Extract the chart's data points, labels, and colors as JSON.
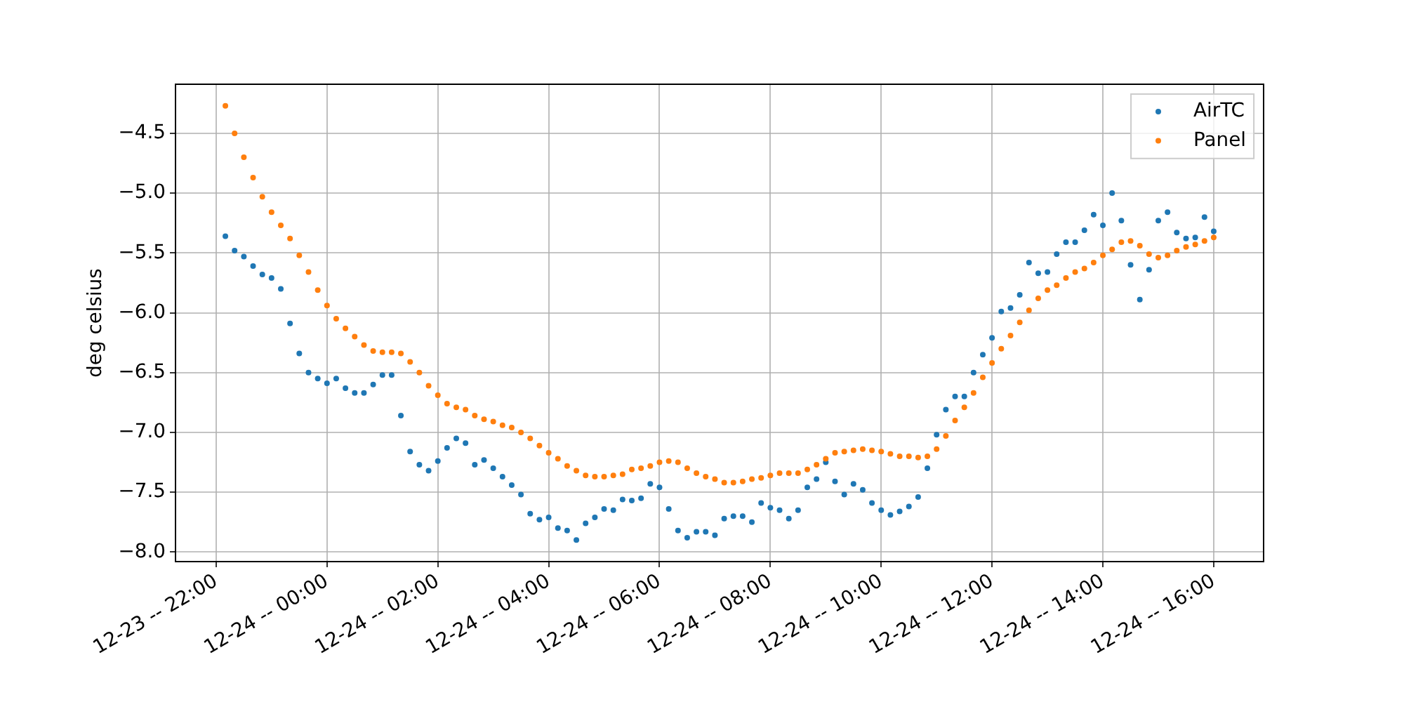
{
  "chart_data": {
    "type": "scatter",
    "x": [
      "--12-23T22:10",
      "--12-23T22:20",
      "--12-23T22:30",
      "--12-23T22:40",
      "--12-23T22:50",
      "--12-23T23:00",
      "--12-23T23:10",
      "--12-23T23:20",
      "--12-23T23:30",
      "--12-23T23:40",
      "--12-23T23:50",
      "--12-24T00:00",
      "--12-24T00:10",
      "--12-24T00:20",
      "--12-24T00:30",
      "--12-24T00:40",
      "--12-24T00:50",
      "--12-24T01:00",
      "--12-24T01:10",
      "--12-24T01:20",
      "--12-24T01:30",
      "--12-24T01:40",
      "--12-24T01:50",
      "--12-24T02:00",
      "--12-24T02:10",
      "--12-24T02:20",
      "--12-24T02:30",
      "--12-24T02:40",
      "--12-24T02:50",
      "--12-24T03:00",
      "--12-24T03:10",
      "--12-24T03:20",
      "--12-24T03:30",
      "--12-24T03:40",
      "--12-24T03:50",
      "--12-24T04:00",
      "--12-24T04:10",
      "--12-24T04:20",
      "--12-24T04:30",
      "--12-24T04:40",
      "--12-24T04:50",
      "--12-24T05:00",
      "--12-24T05:10",
      "--12-24T05:20",
      "--12-24T05:30",
      "--12-24T05:40",
      "--12-24T05:50",
      "--12-24T06:00",
      "--12-24T06:10",
      "--12-24T06:20",
      "--12-24T06:30",
      "--12-24T06:40",
      "--12-24T06:50",
      "--12-24T07:00",
      "--12-24T07:10",
      "--12-24T07:20",
      "--12-24T07:30",
      "--12-24T07:40",
      "--12-24T07:50",
      "--12-24T08:00",
      "--12-24T08:10",
      "--12-24T08:20",
      "--12-24T08:30",
      "--12-24T08:40",
      "--12-24T08:50",
      "--12-24T09:00",
      "--12-24T09:10",
      "--12-24T09:20",
      "--12-24T09:30",
      "--12-24T09:40",
      "--12-24T09:50",
      "--12-24T10:00",
      "--12-24T10:10",
      "--12-24T10:20",
      "--12-24T10:30",
      "--12-24T10:40",
      "--12-24T10:50",
      "--12-24T11:00",
      "--12-24T11:10",
      "--12-24T11:20",
      "--12-24T11:30",
      "--12-24T11:40",
      "--12-24T11:50",
      "--12-24T12:00",
      "--12-24T12:10",
      "--12-24T12:20",
      "--12-24T12:30",
      "--12-24T12:40",
      "--12-24T12:50",
      "--12-24T13:00",
      "--12-24T13:10",
      "--12-24T13:20",
      "--12-24T13:30",
      "--12-24T13:40",
      "--12-24T13:50",
      "--12-24T14:00",
      "--12-24T14:10",
      "--12-24T14:20",
      "--12-24T14:30",
      "--12-24T14:40",
      "--12-24T14:50",
      "--12-24T15:00",
      "--12-24T15:10",
      "--12-24T15:20",
      "--12-24T15:30",
      "--12-24T15:40",
      "--12-24T15:50",
      "--12-24T16:00"
    ],
    "series": [
      {
        "name": "AirTC",
        "color": "#1f77b4",
        "values": [
          -5.36,
          -5.48,
          -5.53,
          -5.61,
          -5.68,
          -5.71,
          -5.8,
          -6.09,
          -6.34,
          -6.5,
          -6.55,
          -6.59,
          -6.55,
          -6.63,
          -6.67,
          -6.67,
          -6.6,
          -6.52,
          -6.52,
          -6.86,
          -7.16,
          -7.27,
          -7.32,
          -7.24,
          -7.13,
          -7.05,
          -7.09,
          -7.27,
          -7.23,
          -7.3,
          -7.37,
          -7.44,
          -7.52,
          -7.68,
          -7.73,
          -7.71,
          -7.8,
          -7.82,
          -7.9,
          -7.76,
          -7.71,
          -7.64,
          -7.65,
          -7.56,
          -7.57,
          -7.55,
          -7.43,
          -7.46,
          -7.64,
          -7.82,
          -7.88,
          -7.83,
          -7.83,
          -7.86,
          -7.72,
          -7.7,
          -7.7,
          -7.75,
          -7.59,
          -7.63,
          -7.65,
          -7.72,
          -7.65,
          -7.46,
          -7.39,
          -7.25,
          -7.41,
          -7.52,
          -7.43,
          -7.48,
          -7.59,
          -7.65,
          -7.69,
          -7.66,
          -7.62,
          -7.54,
          -7.3,
          -7.02,
          -6.81,
          -6.7,
          -6.7,
          -6.5,
          -6.35,
          -6.21,
          -5.99,
          -5.96,
          -5.85,
          -5.58,
          -5.67,
          -5.66,
          -5.51,
          -5.41,
          -5.41,
          -5.31,
          -5.18,
          -5.27,
          -5.0,
          -5.23,
          -5.6,
          -5.89,
          -5.64,
          -5.23,
          -5.16,
          -5.33,
          -5.38,
          -5.37,
          -5.2,
          -5.32
        ]
      },
      {
        "name": "Panel",
        "color": "#ff7f0e",
        "values": [
          -4.27,
          -4.5,
          -4.7,
          -4.87,
          -5.03,
          -5.16,
          -5.27,
          -5.38,
          -5.52,
          -5.66,
          -5.81,
          -5.94,
          -6.05,
          -6.13,
          -6.2,
          -6.27,
          -6.32,
          -6.33,
          -6.33,
          -6.34,
          -6.41,
          -6.5,
          -6.61,
          -6.69,
          -6.76,
          -6.79,
          -6.81,
          -6.86,
          -6.89,
          -6.91,
          -6.94,
          -6.96,
          -7.0,
          -7.05,
          -7.11,
          -7.17,
          -7.22,
          -7.28,
          -7.32,
          -7.36,
          -7.37,
          -7.37,
          -7.36,
          -7.35,
          -7.31,
          -7.3,
          -7.28,
          -7.25,
          -7.24,
          -7.25,
          -7.3,
          -7.34,
          -7.37,
          -7.39,
          -7.42,
          -7.42,
          -7.41,
          -7.39,
          -7.38,
          -7.36,
          -7.34,
          -7.34,
          -7.34,
          -7.31,
          -7.27,
          -7.22,
          -7.17,
          -7.16,
          -7.15,
          -7.14,
          -7.15,
          -7.16,
          -7.18,
          -7.2,
          -7.2,
          -7.21,
          -7.2,
          -7.14,
          -7.03,
          -6.9,
          -6.79,
          -6.67,
          -6.54,
          -6.42,
          -6.3,
          -6.19,
          -6.08,
          -5.98,
          -5.88,
          -5.81,
          -5.77,
          -5.71,
          -5.66,
          -5.63,
          -5.58,
          -5.52,
          -5.47,
          -5.41,
          -5.4,
          -5.44,
          -5.51,
          -5.54,
          -5.52,
          -5.48,
          -5.45,
          -5.43,
          -5.4,
          -5.37
        ]
      }
    ],
    "ylabel": "deg celsius",
    "xlim": [
      "--12-23T21:16",
      "--12-24T16:54"
    ],
    "xticks": [
      {
        "value": "--12-23T22:00",
        "label": "12-23 -- 22:00"
      },
      {
        "value": "--12-24T00:00",
        "label": "12-24 -- 00:00"
      },
      {
        "value": "--12-24T02:00",
        "label": "12-24 -- 02:00"
      },
      {
        "value": "--12-24T04:00",
        "label": "12-24 -- 04:00"
      },
      {
        "value": "--12-24T06:00",
        "label": "12-24 -- 06:00"
      },
      {
        "value": "--12-24T08:00",
        "label": "12-24 -- 08:00"
      },
      {
        "value": "--12-24T10:00",
        "label": "12-24 -- 10:00"
      },
      {
        "value": "--12-24T12:00",
        "label": "12-24 -- 12:00"
      },
      {
        "value": "--12-24T14:00",
        "label": "12-24 -- 14:00"
      },
      {
        "value": "--12-24T16:00",
        "label": "12-24 -- 16:00"
      }
    ],
    "ylim": [
      -8.08,
      -4.09
    ],
    "yticks": [
      {
        "value": -8.0,
        "label": "−8.0"
      },
      {
        "value": -7.5,
        "label": "−7.5"
      },
      {
        "value": -7.0,
        "label": "−7.0"
      },
      {
        "value": -6.5,
        "label": "−6.5"
      },
      {
        "value": -6.0,
        "label": "−6.0"
      },
      {
        "value": -5.5,
        "label": "−5.5"
      },
      {
        "value": -5.0,
        "label": "−5.0"
      },
      {
        "value": -4.5,
        "label": "−4.5"
      }
    ],
    "grid": true,
    "legend": "top right",
    "marker": "circle"
  }
}
